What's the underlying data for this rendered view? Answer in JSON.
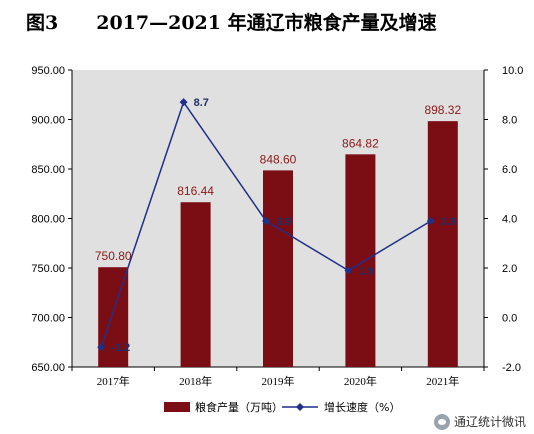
{
  "figure": {
    "number": "图3",
    "title": "2017—2021 年通辽市粮食产量及增速"
  },
  "watermark": "通辽统计微讯",
  "colors": {
    "bar": "#7b0d14",
    "line": "#1f2f8a",
    "plot_bg": "#e0e0e0"
  },
  "chart_data": {
    "type": "bar",
    "categories": [
      "2017年",
      "2018年",
      "2019年",
      "2020年",
      "2021年"
    ],
    "series": [
      {
        "name": "粮食产量（万吨）",
        "type": "bar",
        "axis": "left",
        "values": [
          750.8,
          816.44,
          848.6,
          864.82,
          898.32
        ],
        "labels": [
          "750.80",
          "816.44",
          "848.60",
          "864.82",
          "898.32"
        ]
      },
      {
        "name": "增长速度（%）",
        "type": "line",
        "axis": "right",
        "values": [
          -1.2,
          8.7,
          3.9,
          1.9,
          3.9
        ],
        "labels": [
          "-1.2",
          "8.7",
          "3.9",
          "1.9",
          "3.9"
        ]
      }
    ],
    "ylim_left": [
      650,
      950
    ],
    "yticks_left": [
      "650.00",
      "700.00",
      "750.00",
      "800.00",
      "850.00",
      "900.00",
      "950.00"
    ],
    "ylim_right": [
      -2,
      10
    ],
    "yticks_right": [
      "-2.0",
      "0.0",
      "2.0",
      "4.0",
      "6.0",
      "8.0",
      "10.0"
    ],
    "legend_position": "bottom",
    "grid": false
  }
}
